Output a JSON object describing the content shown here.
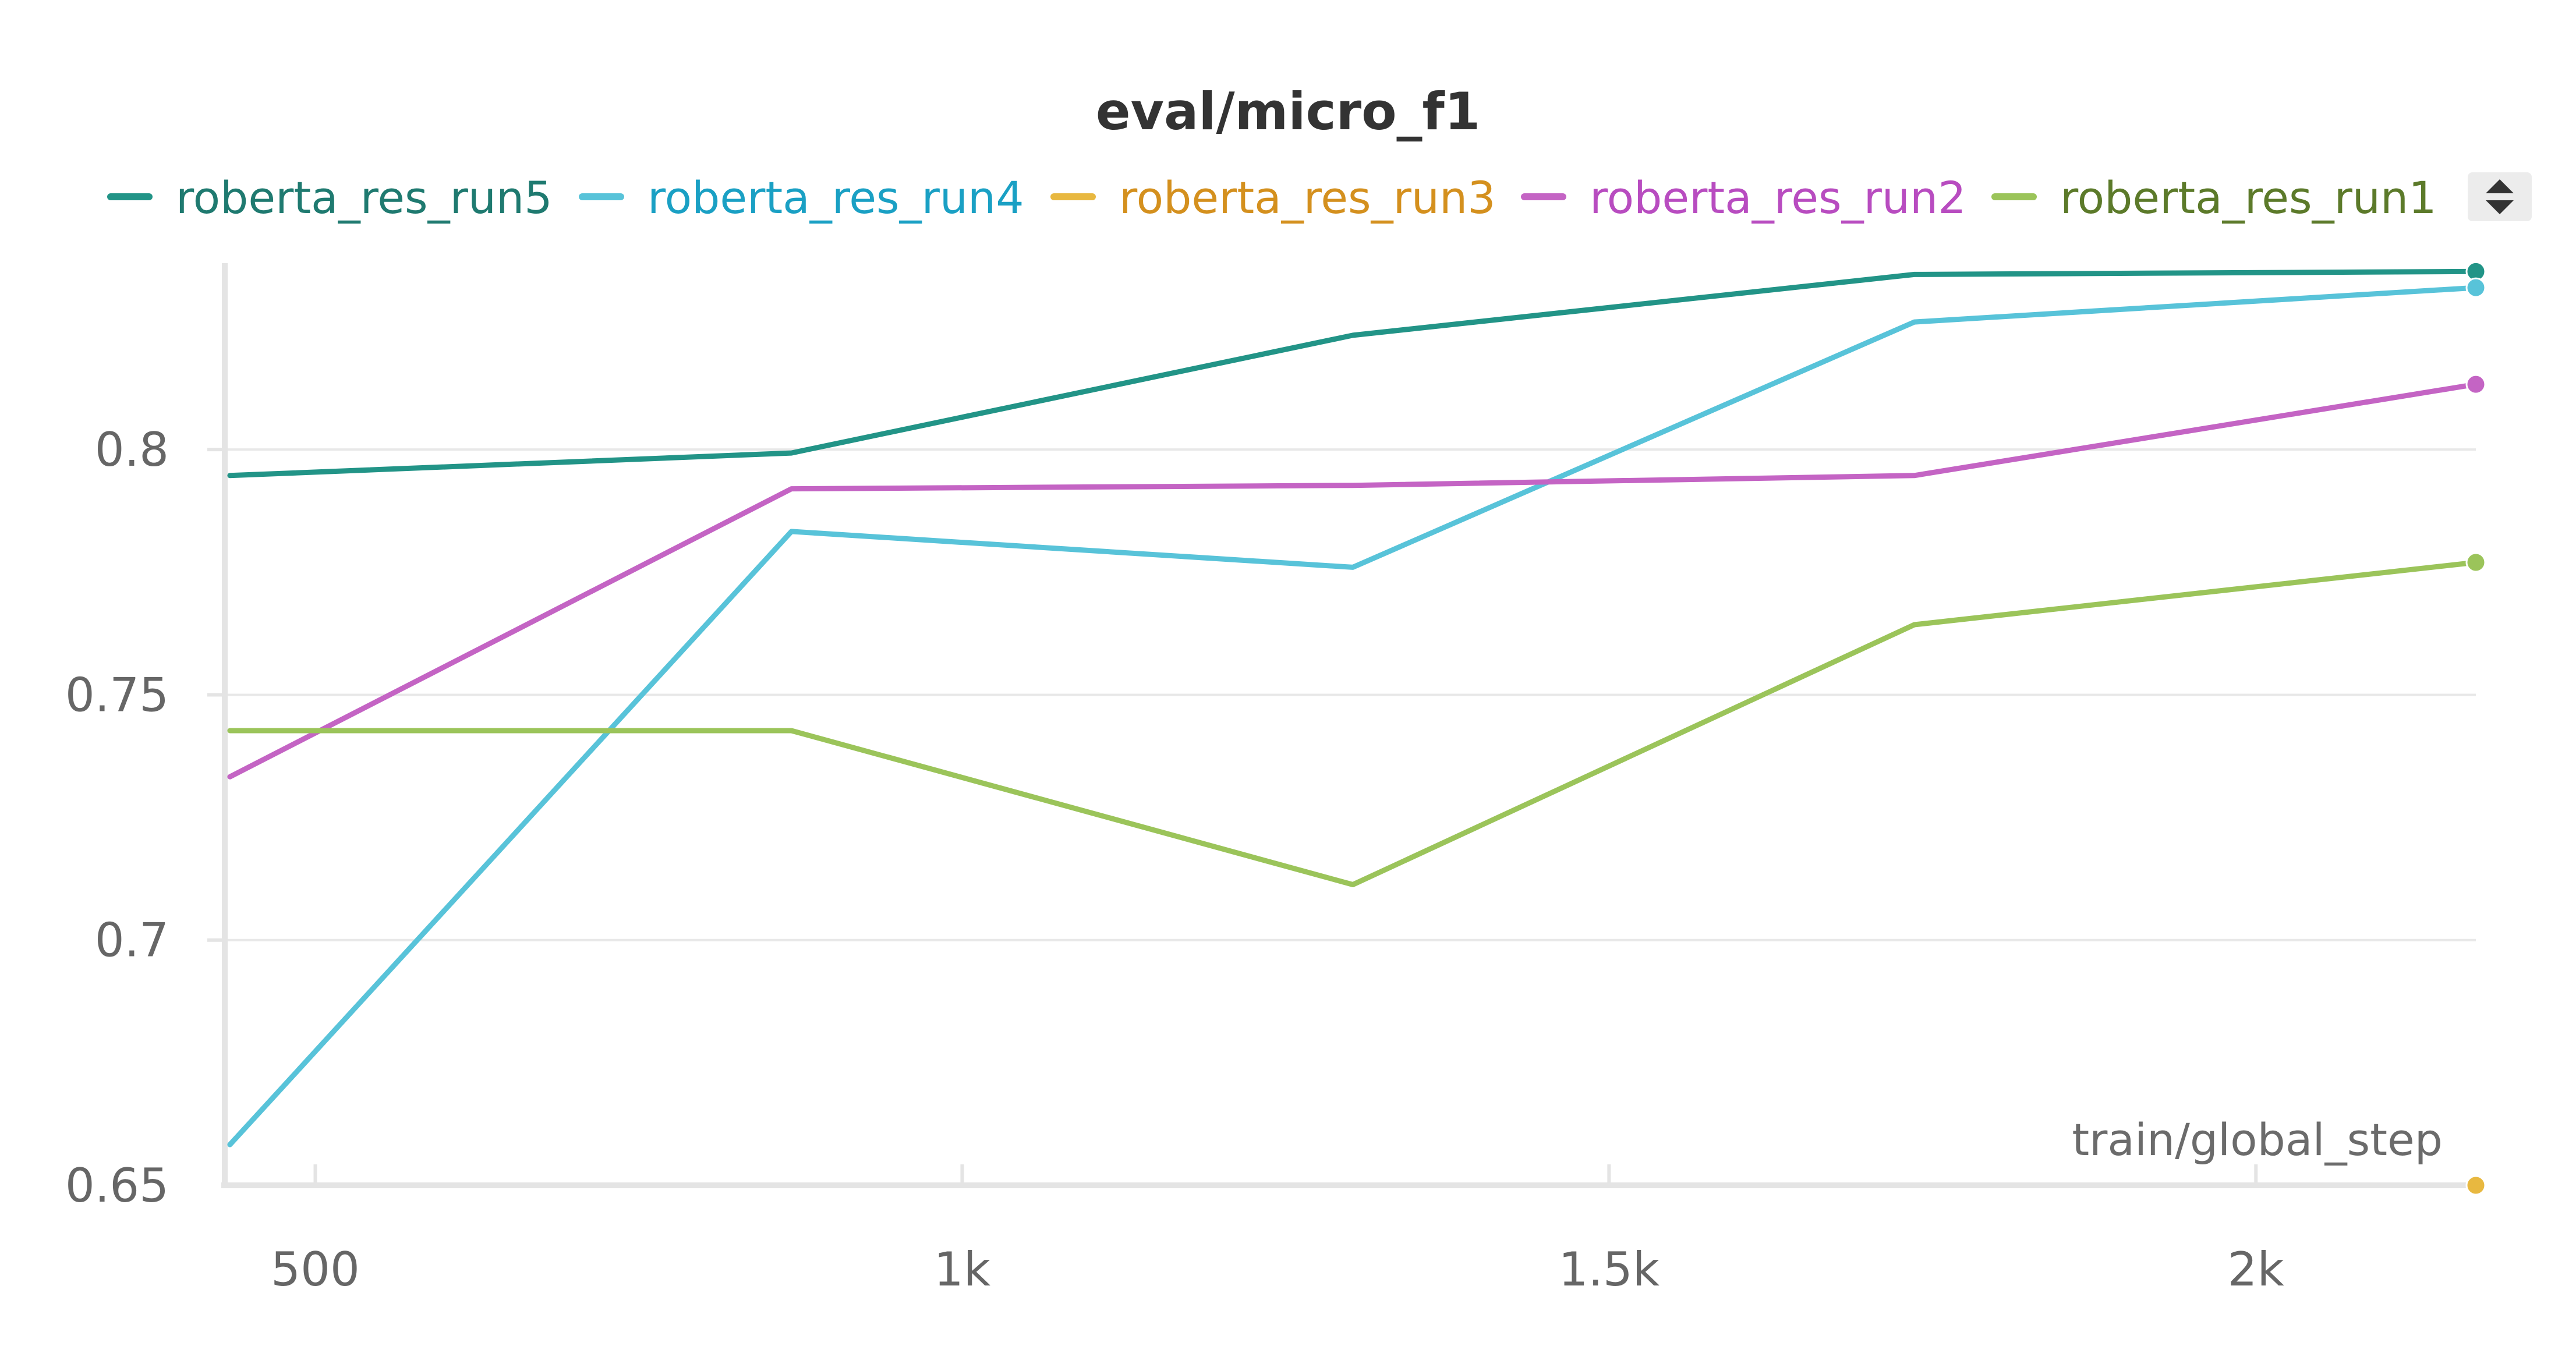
{
  "chart_data": {
    "type": "line",
    "title": "eval/micro_f1",
    "xlabel": "train/global_step",
    "ylabel": "",
    "xlim": [
      430,
      2170
    ],
    "ylim": [
      0.65,
      0.838
    ],
    "x_ticks": [
      {
        "value": 500,
        "label": "500"
      },
      {
        "value": 1000,
        "label": "1k"
      },
      {
        "value": 1500,
        "label": "1.5k"
      },
      {
        "value": 2000,
        "label": "2k"
      }
    ],
    "y_ticks": [
      {
        "value": 0.65,
        "label": "0.65"
      },
      {
        "value": 0.7,
        "label": "0.7"
      },
      {
        "value": 0.75,
        "label": "0.75"
      },
      {
        "value": 0.8,
        "label": "0.8"
      }
    ],
    "grid": true,
    "legend_position": "top",
    "series": [
      {
        "name": "roberta_res_run5",
        "color": "#229487",
        "x": [
          434,
          868,
          1302,
          1736,
          2170
        ],
        "y": [
          0.7947,
          0.7993,
          0.8233,
          0.8357,
          0.8363
        ]
      },
      {
        "name": "roberta_res_run4",
        "color": "#58c3d9",
        "x": [
          434,
          868,
          1302,
          1736,
          2170
        ],
        "y": [
          0.6583,
          0.7833,
          0.776,
          0.826,
          0.833
        ]
      },
      {
        "name": "roberta_res_run3",
        "color": "#e8b840",
        "x": [
          2170
        ],
        "y": [
          0.65
        ]
      },
      {
        "name": "roberta_res_run2",
        "color": "#c464c4",
        "x": [
          434,
          868,
          1302,
          1736,
          2170
        ],
        "y": [
          0.7333,
          0.792,
          0.7927,
          0.7947,
          0.8133
        ]
      },
      {
        "name": "roberta_res_run1",
        "color": "#9bc45a",
        "x": [
          434,
          868,
          1302,
          1736,
          2170
        ],
        "y": [
          0.7427,
          0.7427,
          0.7113,
          0.7643,
          0.777
        ]
      }
    ],
    "legend_text_colors": [
      "#1f7a70",
      "#1aa0c4",
      "#d4901e",
      "#b84cc0",
      "#5c7a2a"
    ],
    "legend_scroll_icon": "up-down-arrows-icon"
  }
}
